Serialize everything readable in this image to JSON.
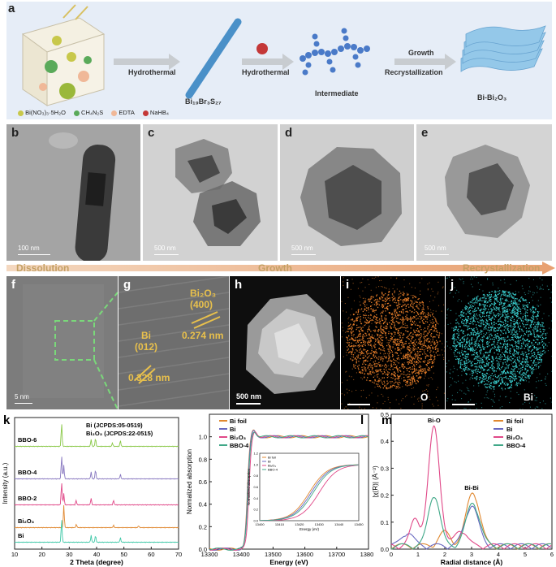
{
  "panel_a": {
    "label": "a",
    "step1": "Hydrothermal",
    "product1": "Bi₁₉Br₃S₂₇",
    "step2": "Hydrothermal",
    "product2": "Intermediate",
    "step3_line1": "Growth",
    "step3_line2": "Recrystallization",
    "product3": "Bi-Bi₂O₃",
    "legend": [
      {
        "label": "Bi(NO₃)₃·5H₂O",
        "color": "#c8c84a"
      },
      {
        "label": "CH₄N₂S",
        "color": "#5aaa5a"
      },
      {
        "label": "EDTA",
        "color": "#f0b898"
      },
      {
        "label": "NaHB₄",
        "color": "#c43838"
      }
    ]
  },
  "tem_panels": [
    {
      "label": "b",
      "scale": "100 nm"
    },
    {
      "label": "c",
      "scale": "500 nm"
    },
    {
      "label": "d",
      "scale": "500 nm"
    },
    {
      "label": "e",
      "scale": "500 nm"
    }
  ],
  "process": {
    "dissolution": "Dissolution",
    "growth": "Growth",
    "recrystallization": "Recrystallization"
  },
  "hr_panels": {
    "f": {
      "label": "f",
      "scale": "5 nm"
    },
    "g": {
      "label": "g",
      "phase1_name": "Bi₂O₃",
      "phase1_plane": "(400)",
      "phase1_d": "0.274 nm",
      "phase2_name": "Bi",
      "phase2_plane": "(012)",
      "phase2_d": "0.328 nm"
    },
    "h": {
      "label": "h",
      "scale": "500 nm"
    },
    "i": {
      "label": "i",
      "element": "O",
      "color": "#e07a28"
    },
    "j": {
      "label": "j",
      "element": "Bi",
      "color": "#38c8c8"
    }
  },
  "chart_data": [
    {
      "type": "line",
      "panel": "k",
      "xlabel": "2 Theta (degree)",
      "ylabel": "Intensity (a.u.)",
      "xlim": [
        10,
        70
      ],
      "xticks": [
        10,
        20,
        30,
        40,
        50,
        60,
        70
      ],
      "annotations": [
        "Bi  (JCPDS:05-0519)",
        "Bi₂O₃  (JCPDS:22-0515)"
      ],
      "series": [
        {
          "name": "BBO-6",
          "color": "#8ac848",
          "peaks": [
            [
              27.2,
              1.0
            ],
            [
              38.0,
              0.3
            ],
            [
              39.6,
              0.35
            ],
            [
              48.7,
              0.25
            ],
            [
              45.8,
              0.15
            ]
          ]
        },
        {
          "name": "BBO-4",
          "color": "#8878c0",
          "peaks": [
            [
              27.2,
              1.0
            ],
            [
              28.0,
              0.6
            ],
            [
              38.0,
              0.3
            ],
            [
              39.6,
              0.4
            ],
            [
              48.7,
              0.2
            ]
          ]
        },
        {
          "name": "BBO-2",
          "color": "#e04888",
          "peaks": [
            [
              27.2,
              1.0
            ],
            [
              28.0,
              0.5
            ],
            [
              32.5,
              0.2
            ],
            [
              38.0,
              0.3
            ],
            [
              46.2,
              0.2
            ]
          ]
        },
        {
          "name": "Bi₂O₃",
          "color": "#e08830",
          "peaks": [
            [
              28.0,
              1.0
            ],
            [
              32.6,
              0.15
            ],
            [
              46.2,
              0.1
            ],
            [
              55.4,
              0.08
            ]
          ]
        },
        {
          "name": "Bi",
          "color": "#40c8a8",
          "peaks": [
            [
              27.2,
              1.0
            ],
            [
              38.0,
              0.3
            ],
            [
              39.6,
              0.3
            ],
            [
              48.7,
              0.2
            ]
          ]
        }
      ]
    },
    {
      "type": "line",
      "panel": "l",
      "xlabel": "Energy (eV)",
      "ylabel": "Normalized absorption",
      "xlim": [
        13300,
        13800
      ],
      "ylim": [
        0.0,
        1.2
      ],
      "xticks": [
        13300,
        13400,
        13500,
        13600,
        13700,
        13800
      ],
      "yticks": [
        0.0,
        0.2,
        0.4,
        0.6,
        0.8,
        1.0
      ],
      "inset": {
        "xlabel": "Energy (eV)",
        "ylabel": "Normalized absorption",
        "xticks": [
          13400,
          13410,
          13420,
          13430,
          13440,
          13450
        ],
        "yticks": [
          0.0,
          0.2,
          0.4,
          0.6,
          0.8,
          1.0,
          1.2
        ]
      },
      "series": [
        {
          "name": "Bi foil",
          "color": "#e08830",
          "edge": 13419
        },
        {
          "name": "Bi",
          "color": "#6868c0",
          "edge": 13420
        },
        {
          "name": "Bi₂O₃",
          "color": "#e04888",
          "edge": 13424
        },
        {
          "name": "BBO-4",
          "color": "#40a888",
          "edge": 13421
        }
      ]
    },
    {
      "type": "line",
      "panel": "m",
      "xlabel": "Radial distance (Å)",
      "ylabel": "|χ(R)| (Å⁻³)",
      "xlim": [
        0,
        6
      ],
      "ylim": [
        0.0,
        0.5
      ],
      "xticks": [
        0,
        1,
        2,
        3,
        4,
        5,
        6
      ],
      "yticks": [
        0.0,
        0.1,
        0.2,
        0.3,
        0.4,
        0.5
      ],
      "annotations": [
        "Bi-O",
        "Bi-Bi"
      ],
      "series": [
        {
          "name": "Bi foil",
          "color": "#e08830"
        },
        {
          "name": "Bi",
          "color": "#6868c0"
        },
        {
          "name": "Bi₂O₃",
          "color": "#e04888"
        },
        {
          "name": "BBO-4",
          "color": "#40a888"
        }
      ]
    }
  ]
}
